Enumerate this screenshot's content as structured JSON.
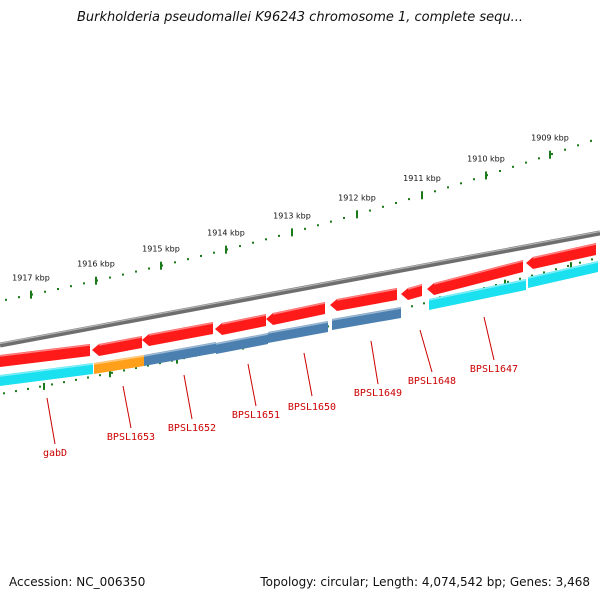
{
  "title": "Burkholderia pseudomallei K96243 chromosome 1, complete sequ...",
  "footer": {
    "accession": "Accession: NC_006350",
    "summary": "Topology: circular; Length: 4,074,542 bp; Genes: 3,468"
  },
  "colors": {
    "ruler": "#1a7a1a",
    "backbone": "#808080",
    "gene_forward": "#ff1a1a",
    "feature_steel": "#4a7fb0",
    "feature_cyan": "#1ae0f0",
    "feature_orange": "#ff9f1a",
    "label": "#cc0000"
  },
  "kbp_ticks": [
    "1917 kbp",
    "1916 kbp",
    "1915 kbp",
    "1914 kbp",
    "1913 kbp",
    "1912 kbp",
    "1911 kbp",
    "1910 kbp",
    "1909 kbp"
  ],
  "gene_labels": [
    "gabD",
    "BPSL1653",
    "BPSL1652",
    "BPSL1651",
    "BPSL1650",
    "BPSL1649",
    "BPSL1648",
    "BPSL1647"
  ]
}
